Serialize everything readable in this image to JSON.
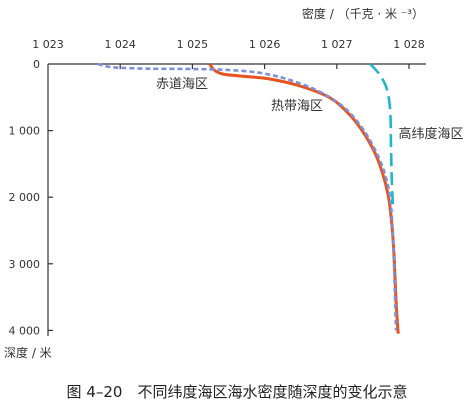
{
  "chart_data": {
    "type": "line",
    "xlabel": "密度 / （千克 · 米 ⁻³）",
    "ylabel": "深度 / 米",
    "x_axis_position": "top",
    "y_inverted": true,
    "grid": false,
    "xlim": [
      1023,
      1028
    ],
    "ylim": [
      0,
      4000
    ],
    "x_ticks": [
      1023,
      1024,
      1025,
      1026,
      1027,
      1028
    ],
    "x_tick_labels": [
      "1 023",
      "1 024",
      "1 025",
      "1 026",
      "1 027",
      "1 028"
    ],
    "y_ticks": [
      0,
      1000,
      2000,
      3000,
      4000
    ],
    "y_tick_labels": [
      "0",
      "1 000",
      "2 000",
      "3 000",
      "4 000"
    ],
    "series": [
      {
        "name": "赤道海区",
        "color": "#7d8fd9",
        "style": "dashed",
        "x": [
          1023.69,
          1023.9,
          1024.4,
          1025.0,
          1025.5,
          1025.95,
          1026.35,
          1026.77,
          1027.11,
          1027.35,
          1027.53,
          1027.67,
          1027.75,
          1027.79,
          1027.82
        ],
        "y": [
          0,
          50,
          70,
          75,
          90,
          135,
          240,
          420,
          660,
          960,
          1290,
          1665,
          2115,
          2940,
          4000
        ]
      },
      {
        "name": "热带海区",
        "color": "#e8521f",
        "style": "solid",
        "x": [
          1025.24,
          1025.3,
          1025.42,
          1025.66,
          1026.07,
          1026.49,
          1026.91,
          1027.18,
          1027.39,
          1027.57,
          1027.71,
          1027.78,
          1027.82,
          1027.85
        ],
        "y": [
          0,
          90,
          150,
          180,
          225,
          330,
          510,
          765,
          1065,
          1440,
          1965,
          2640,
          3540,
          4050
        ]
      },
      {
        "name": "高纬度海区",
        "color": "#22b4c8",
        "style": "long-dashed",
        "x": [
          1027.46,
          1027.55,
          1027.63,
          1027.7,
          1027.74,
          1027.75,
          1027.76,
          1027.78
        ],
        "y": [
          0,
          100,
          220,
          400,
          700,
          1150,
          1700,
          2200
        ]
      }
    ]
  },
  "figure": {
    "caption": "图 4–20　不同纬度海区海水密度随深度的变化示意"
  }
}
